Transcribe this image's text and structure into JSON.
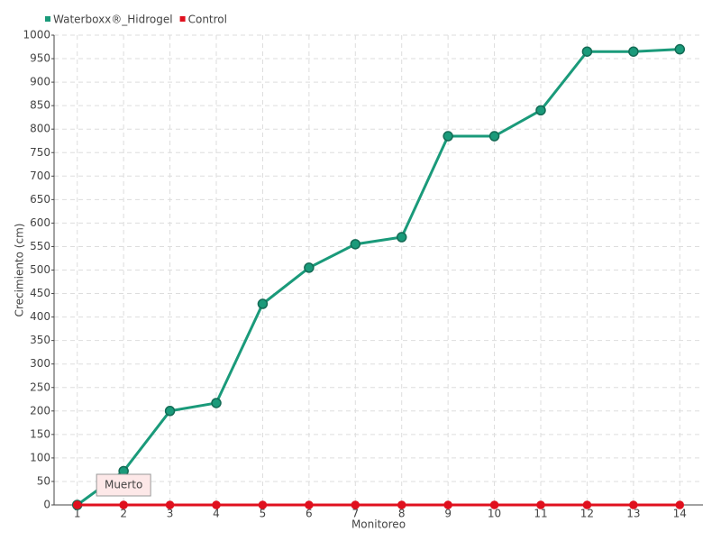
{
  "chart_data": {
    "type": "line",
    "categories": [
      "1",
      "2",
      "3",
      "4",
      "5",
      "6",
      "7",
      "8",
      "9",
      "10",
      "11",
      "12",
      "13",
      "14"
    ],
    "series": [
      {
        "name": "Waterboxx®_Hidrogel",
        "color": "#1a9a7a",
        "values": [
          0,
          72,
          200,
          217,
          428,
          505,
          555,
          570,
          785,
          785,
          840,
          965,
          965,
          970
        ]
      },
      {
        "name": "Control",
        "color": "#e0101e",
        "values": [
          0,
          0,
          0,
          0,
          0,
          0,
          0,
          0,
          0,
          0,
          0,
          0,
          0,
          0
        ]
      }
    ],
    "x_label": "Monitoreo",
    "y_label": "Crecimiento (cm)",
    "annotation": "Muerto",
    "ylim": [
      0,
      1000
    ],
    "yticks": [
      0,
      50,
      100,
      150,
      200,
      250,
      300,
      350,
      400,
      450,
      500,
      550,
      600,
      650,
      700,
      750,
      800,
      850,
      900,
      950,
      1000
    ],
    "grid": true,
    "legend": "top-left"
  }
}
